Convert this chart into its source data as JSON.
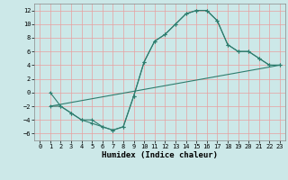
{
  "title": "",
  "xlabel": "Humidex (Indice chaleur)",
  "bg_color": "#cce8e8",
  "grid_color": "#e8a0a0",
  "line_color": "#2e7d6e",
  "xlim": [
    -0.5,
    23.5
  ],
  "ylim": [
    -7,
    13
  ],
  "yticks": [
    -6,
    -4,
    -2,
    0,
    2,
    4,
    6,
    8,
    10,
    12
  ],
  "xticks": [
    0,
    1,
    2,
    3,
    4,
    5,
    6,
    7,
    8,
    9,
    10,
    11,
    12,
    13,
    14,
    15,
    16,
    17,
    18,
    19,
    20,
    21,
    22,
    23
  ],
  "line1_x": [
    1,
    2,
    3,
    4,
    5,
    6,
    7,
    8,
    9,
    10,
    11,
    12,
    13,
    14,
    15,
    16,
    17,
    18,
    19,
    20,
    21,
    22,
    23
  ],
  "line1_y": [
    0,
    -2,
    -3,
    -4,
    -4,
    -5,
    -5.5,
    -5,
    -0.5,
    4.5,
    7.5,
    8.5,
    10,
    11.5,
    12,
    12,
    10.5,
    7,
    6,
    6,
    5,
    4,
    4
  ],
  "line2_x": [
    1,
    2,
    3,
    4,
    5,
    6,
    7,
    8,
    9,
    10,
    11,
    12,
    13,
    14,
    15,
    16,
    17,
    18,
    19,
    20,
    21,
    22,
    23
  ],
  "line2_y": [
    -2,
    -2,
    -3,
    -4,
    -4.5,
    -5,
    -5.5,
    -5,
    -0.5,
    4.5,
    7.5,
    8.5,
    10,
    11.5,
    12,
    12,
    10.5,
    7,
    6,
    6,
    5,
    4,
    4
  ],
  "line3_x": [
    1,
    23
  ],
  "line3_y": [
    -2,
    4
  ],
  "xlabel_fontsize": 6.5,
  "tick_fontsize": 5.0
}
